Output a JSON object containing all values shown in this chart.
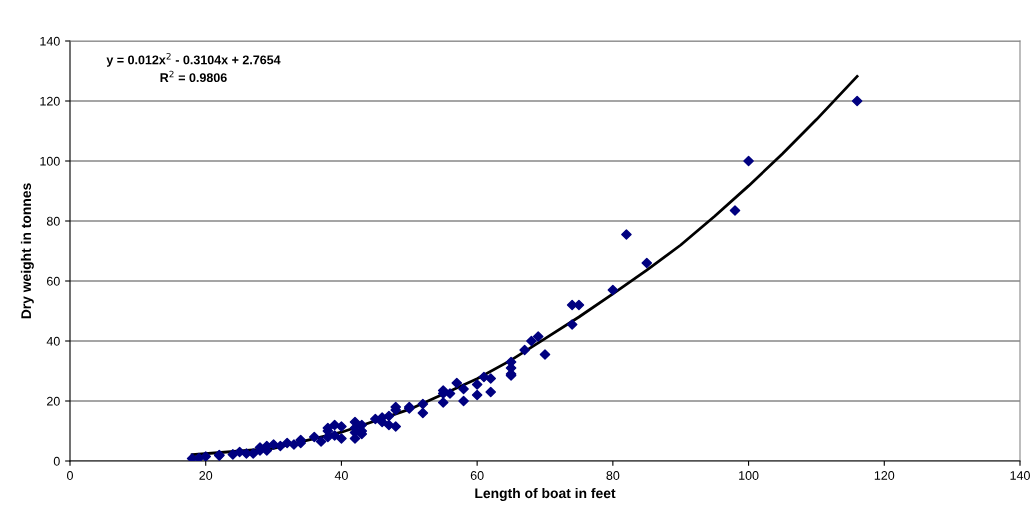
{
  "chart_data": {
    "type": "scatter",
    "xlabel": "Length of boat in feet",
    "ylabel": "Dry weight in tonnes",
    "xlim": [
      0,
      140
    ],
    "xticks": [
      0,
      20,
      40,
      60,
      80,
      100,
      120,
      140
    ],
    "ylim": [
      0,
      140
    ],
    "yticks": [
      0,
      20,
      40,
      60,
      80,
      100,
      120,
      140
    ],
    "grid": "y",
    "marker": "diamond",
    "legend": false,
    "annotations": [
      "y = 0.012x$^{2}$ - 0.3104x + 2.7654",
      "R$^{2}$ = 0.9806"
    ],
    "series": [
      {
        "color": "#000080",
        "x": [
          18,
          19,
          20,
          22,
          22,
          24,
          25,
          26,
          27,
          28,
          28,
          29,
          29,
          30,
          31,
          32,
          33,
          34,
          34,
          36,
          37,
          38,
          38,
          38,
          39,
          39,
          40,
          40,
          42,
          42,
          42,
          42,
          43,
          43,
          43,
          45,
          46,
          46,
          47,
          47,
          48,
          48,
          48,
          50,
          50,
          52,
          52,
          55,
          55,
          55,
          56,
          57,
          58,
          58,
          60,
          60,
          61,
          62,
          62,
          65,
          65,
          65,
          65,
          67,
          68,
          69,
          70,
          74,
          74,
          75,
          80,
          82,
          85,
          98,
          100,
          116
        ],
        "values": [
          0.8,
          1,
          1.5,
          2,
          1.8,
          2.2,
          3,
          2.5,
          2.5,
          3.5,
          4.5,
          3.5,
          5,
          5.5,
          5,
          6,
          5.5,
          7,
          6,
          8,
          6.5,
          8,
          10,
          11,
          12,
          8.5,
          11.5,
          7.5,
          13,
          11,
          9.5,
          7.5,
          12,
          10,
          9,
          14,
          13,
          14.5,
          12,
          15,
          18,
          17,
          11.5,
          18,
          17.5,
          19,
          16,
          23.5,
          22.5,
          19.5,
          22.5,
          26,
          24,
          20,
          25.5,
          22,
          28,
          27.5,
          23,
          33,
          31,
          29,
          28.5,
          37,
          40,
          41.5,
          35.5,
          52,
          45.5,
          52,
          57,
          75.5,
          66,
          83.5,
          100,
          120
        ]
      },
      {
        "type": "line",
        "color": "#000000",
        "marker": "none",
        "line_style": "solid",
        "x": [
          18,
          30,
          40,
          50,
          60,
          65,
          70,
          75,
          80,
          85,
          90,
          95,
          100,
          105,
          110,
          116
        ],
        "values": [
          2.1,
          4.2,
          9.6,
          17.2,
          27.4,
          33.6,
          40.8,
          48,
          55.7,
          63.6,
          72,
          81.6,
          91.7,
          102.4,
          113.8,
          128.2
        ]
      }
    ]
  }
}
